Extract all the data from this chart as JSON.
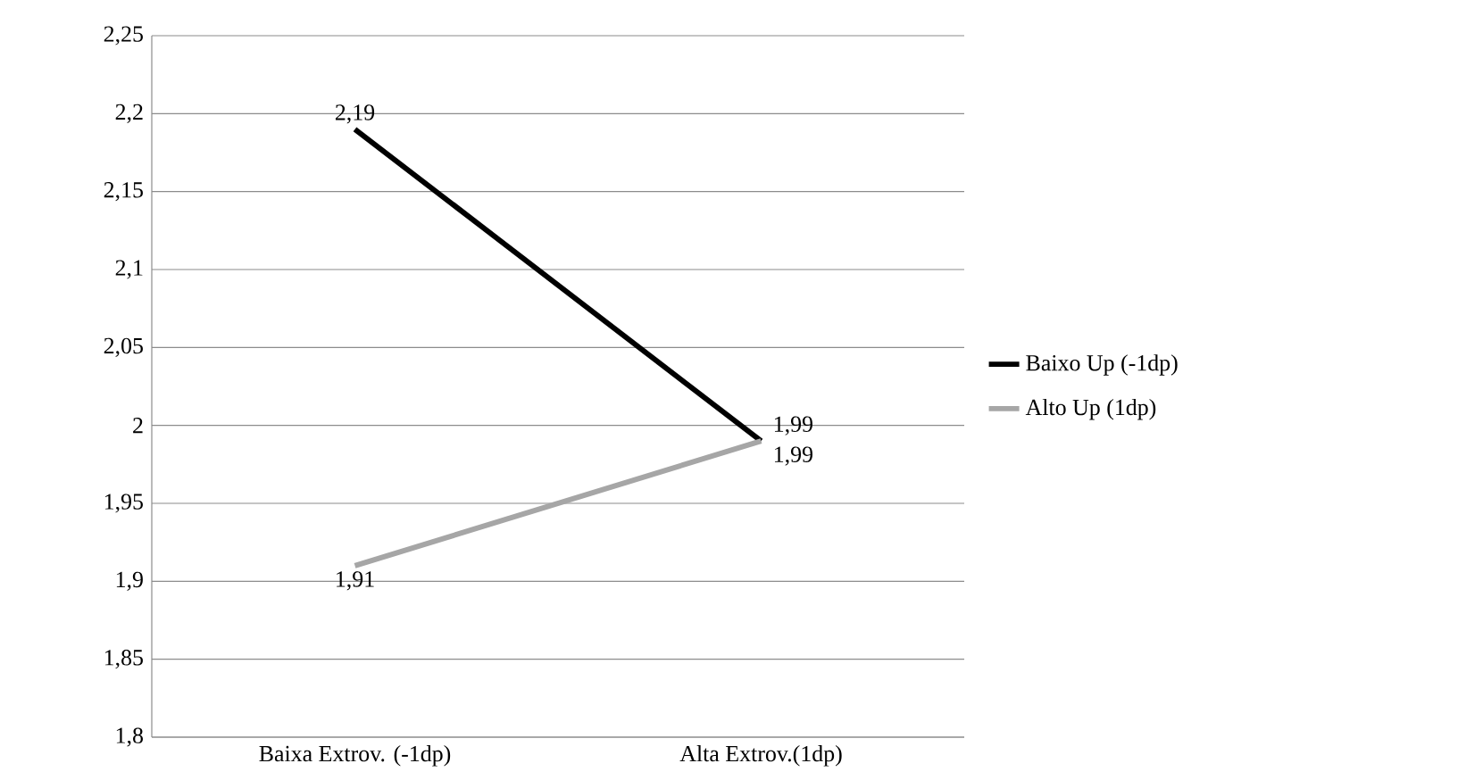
{
  "chart_data": {
    "type": "line",
    "categories": [
      "Baixa Extrov. (-1dp)",
      "Alta Extrov.(1dp)"
    ],
    "series": [
      {
        "name": "Baixo Up  (-1dp)",
        "color": "#000000",
        "values": [
          2.19,
          1.99
        ],
        "value_labels": [
          "2,19",
          "1,99"
        ]
      },
      {
        "name": "Alto Up  (1dp)",
        "color": "#a6a6a6",
        "values": [
          1.91,
          1.99
        ],
        "value_labels": [
          "1,91",
          "1,99"
        ]
      }
    ],
    "ylim": [
      1.8,
      2.25
    ],
    "yticks": [
      {
        "value": 1.8,
        "label": "1,8"
      },
      {
        "value": 1.85,
        "label": "1,85"
      },
      {
        "value": 1.9,
        "label": "1,9"
      },
      {
        "value": 1.95,
        "label": "1,95"
      },
      {
        "value": 2,
        "label": "2"
      },
      {
        "value": 2.05,
        "label": "2,05"
      },
      {
        "value": 2.1,
        "label": "2,1"
      },
      {
        "value": 2.15,
        "label": "2,15"
      },
      {
        "value": 2.2,
        "label": "2,2"
      },
      {
        "value": 2.25,
        "label": "2,25"
      }
    ],
    "grid": "y",
    "legend": "right",
    "marker": "none",
    "line_style": "solid"
  }
}
